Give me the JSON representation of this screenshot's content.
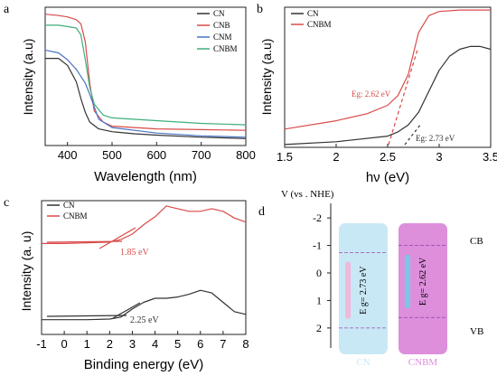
{
  "chart_data": [
    {
      "type": "line",
      "panel_label": "a",
      "xlabel": "Wavelength (nm)",
      "ylabel": "Intensity (a.u)",
      "xlim": [
        350,
        800
      ],
      "ylim": [
        0,
        1.0
      ],
      "xticks": [
        400,
        500,
        600,
        700,
        800
      ],
      "legend_position": "top-right",
      "series": [
        {
          "name": "CN",
          "color": "#333333",
          "x": [
            350,
            380,
            400,
            420,
            430,
            440,
            450,
            470,
            500,
            550,
            600,
            700,
            800
          ],
          "y": [
            0.63,
            0.63,
            0.58,
            0.46,
            0.34,
            0.24,
            0.17,
            0.12,
            0.1,
            0.085,
            0.075,
            0.06,
            0.05
          ]
        },
        {
          "name": "CNB",
          "color": "#d94a4a",
          "x": [
            350,
            380,
            400,
            420,
            430,
            440,
            450,
            460,
            480,
            500,
            600,
            700,
            800
          ],
          "y": [
            0.95,
            0.94,
            0.93,
            0.91,
            0.88,
            0.75,
            0.45,
            0.25,
            0.17,
            0.14,
            0.12,
            0.115,
            0.11
          ]
        },
        {
          "name": "CNM",
          "color": "#4a73c4",
          "x": [
            350,
            380,
            400,
            420,
            440,
            450,
            460,
            470,
            500,
            600,
            700,
            800
          ],
          "y": [
            0.69,
            0.67,
            0.62,
            0.55,
            0.45,
            0.37,
            0.28,
            0.19,
            0.13,
            0.09,
            0.07,
            0.06
          ]
        },
        {
          "name": "CNBM",
          "color": "#3fae7a",
          "x": [
            350,
            380,
            400,
            420,
            430,
            440,
            450,
            460,
            480,
            500,
            600,
            700,
            800
          ],
          "y": [
            0.87,
            0.87,
            0.86,
            0.85,
            0.8,
            0.62,
            0.42,
            0.3,
            0.22,
            0.2,
            0.18,
            0.16,
            0.15
          ]
        }
      ]
    },
    {
      "type": "line",
      "panel_label": "b",
      "xlabel": "hν (eV)",
      "ylabel": "Intensity (a.u)",
      "xlim": [
        1.5,
        3.5
      ],
      "ylim": [
        0,
        1.0
      ],
      "xticks": [
        1.5,
        2.0,
        2.5,
        3.0,
        3.5
      ],
      "legend_position": "top-left",
      "series": [
        {
          "name": "CN",
          "color": "#333333",
          "x": [
            1.5,
            2.0,
            2.5,
            2.6,
            2.7,
            2.8,
            2.9,
            3.0,
            3.1,
            3.2,
            3.3,
            3.4,
            3.5
          ],
          "y": [
            0.02,
            0.04,
            0.08,
            0.11,
            0.16,
            0.25,
            0.4,
            0.55,
            0.65,
            0.7,
            0.72,
            0.72,
            0.7
          ]
        },
        {
          "name": "CNBM",
          "color": "#d94a4a",
          "x": [
            1.5,
            2.0,
            2.3,
            2.5,
            2.6,
            2.7,
            2.8,
            2.9,
            3.0,
            3.2,
            3.5
          ],
          "y": [
            0.13,
            0.19,
            0.24,
            0.3,
            0.37,
            0.52,
            0.82,
            0.94,
            0.97,
            0.98,
            0.98
          ]
        }
      ],
      "annotations": [
        {
          "text": "Eg: 2.62 eV",
          "color": "#d94a4a"
        },
        {
          "text": "Eg: 2.73 eV",
          "color": "#333333"
        }
      ]
    },
    {
      "type": "line",
      "panel_label": "c",
      "xlabel": "Binding energy (eV)",
      "ylabel": "Intensity (a. u)",
      "xlim": [
        -1,
        8
      ],
      "ylim": [
        0,
        1.0
      ],
      "xticks": [
        -1,
        0,
        1,
        2,
        3,
        4,
        5,
        6,
        7,
        8
      ],
      "legend_position": "top-left",
      "series": [
        {
          "name": "CN",
          "color": "#333333",
          "x": [
            -1,
            0,
            1,
            2,
            2.5,
            3,
            3.5,
            4,
            4.5,
            5,
            5.5,
            6,
            6.5,
            7,
            7.5,
            8
          ],
          "y": [
            0.11,
            0.11,
            0.11,
            0.115,
            0.13,
            0.19,
            0.24,
            0.27,
            0.27,
            0.28,
            0.3,
            0.33,
            0.31,
            0.24,
            0.17,
            0.15
          ]
        },
        {
          "name": "CNBM",
          "color": "#d94a4a",
          "x": [
            -1,
            0,
            1,
            2,
            2.5,
            3,
            3.5,
            4,
            4.5,
            5,
            5.5,
            6,
            6.5,
            7,
            7.5,
            8
          ],
          "y": [
            0.68,
            0.68,
            0.685,
            0.69,
            0.71,
            0.75,
            0.82,
            0.88,
            0.96,
            0.94,
            0.92,
            0.92,
            0.94,
            0.92,
            0.87,
            0.84
          ]
        }
      ],
      "annotations": [
        {
          "text": "1.85 eV",
          "color": "#d94a4a"
        },
        {
          "text": "2.25 eV",
          "color": "#333333"
        }
      ]
    },
    {
      "type": "diagram",
      "panel_label": "d",
      "ylabel": "V  (vs . NHE)",
      "ylim": [
        2.3,
        -2.3
      ],
      "yticks": [
        -2,
        -1,
        0,
        1,
        2
      ],
      "band_labels": {
        "cb": "CB",
        "vb": "VB"
      },
      "bars": [
        {
          "name": "CN",
          "text": "E g= 2.73 eV",
          "cb": -0.74,
          "vb": 2.0,
          "fill": "#c9e8f5",
          "inner": "#f1b8dc"
        },
        {
          "name": "CNBM",
          "text": "E g= 2.62 eV",
          "cb": -1.0,
          "vb": 1.62,
          "fill": "#dd8fdc",
          "inner": "#7cc6e5"
        }
      ]
    }
  ]
}
